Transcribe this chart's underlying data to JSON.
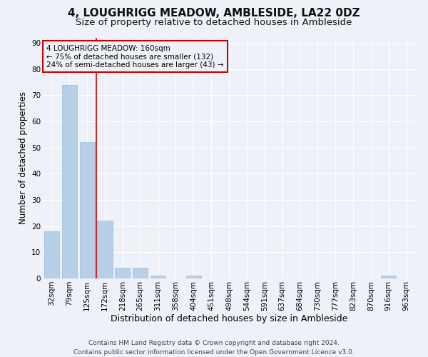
{
  "title": "4, LOUGHRIGG MEADOW, AMBLESIDE, LA22 0DZ",
  "subtitle": "Size of property relative to detached houses in Ambleside",
  "xlabel": "Distribution of detached houses by size in Ambleside",
  "ylabel": "Number of detached properties",
  "background_color": "#eef2f8",
  "bar_color": "#b8cfe8",
  "bar_edge_color": "#9ab8d8",
  "grid_color": "#ffffff",
  "categories": [
    "32sqm",
    "79sqm",
    "125sqm",
    "172sqm",
    "218sqm",
    "265sqm",
    "311sqm",
    "358sqm",
    "404sqm",
    "451sqm",
    "498sqm",
    "544sqm",
    "591sqm",
    "637sqm",
    "684sqm",
    "730sqm",
    "777sqm",
    "823sqm",
    "870sqm",
    "916sqm",
    "963sqm"
  ],
  "values": [
    18,
    74,
    52,
    22,
    4,
    4,
    1,
    0,
    1,
    0,
    0,
    0,
    0,
    0,
    0,
    0,
    0,
    0,
    0,
    1,
    0
  ],
  "ylim": [
    0,
    92
  ],
  "yticks": [
    0,
    10,
    20,
    30,
    40,
    50,
    60,
    70,
    80,
    90
  ],
  "property_line_x": 2.5,
  "property_line_color": "#cc0000",
  "annotation_text": "4 LOUGHRIGG MEADOW: 160sqm\n← 75% of detached houses are smaller (132)\n24% of semi-detached houses are larger (43) →",
  "annotation_box_color": "#cc0000",
  "footer": "Contains HM Land Registry data © Crown copyright and database right 2024.\nContains public sector information licensed under the Open Government Licence v3.0.",
  "title_fontsize": 11,
  "subtitle_fontsize": 9.5,
  "xlabel_fontsize": 9,
  "ylabel_fontsize": 8.5,
  "tick_fontsize": 7.5,
  "annotation_fontsize": 7.5,
  "footer_fontsize": 6.5
}
